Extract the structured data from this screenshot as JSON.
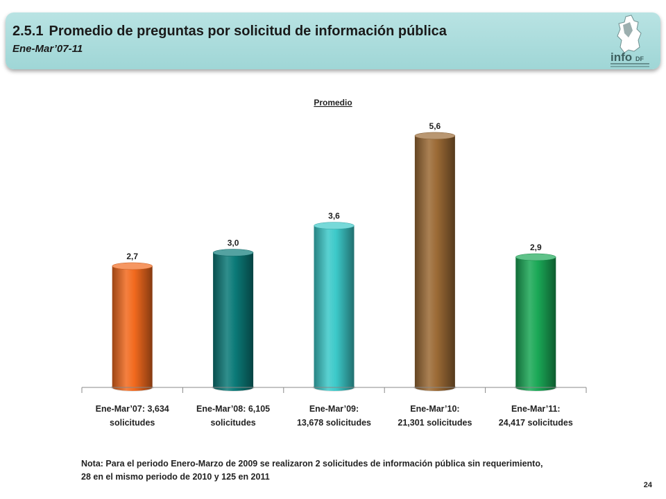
{
  "header": {
    "section_number": "2.5.1",
    "title": "Promedio de preguntas por solicitud de información pública",
    "subtitle": "Ene-Mar’07-11",
    "logo_text": "info",
    "logo_suffix": "DF"
  },
  "chart_data": {
    "type": "bar",
    "title": "Promedio",
    "categories": [
      [
        "Ene-Mar’07: 3,634",
        "solicitudes"
      ],
      [
        "Ene-Mar’08: 6,105",
        "solicitudes"
      ],
      [
        "Ene-Mar’09:",
        "13,678 solicitudes"
      ],
      [
        "Ene-Mar’10:",
        "21,301 solicitudes"
      ],
      [
        "Ene-Mar’11:",
        "24,417 solicitudes"
      ]
    ],
    "values": [
      2.7,
      3.0,
      3.6,
      5.6,
      2.9
    ],
    "value_labels": [
      "2,7",
      "3,0",
      "3,6",
      "5,6",
      "2,9"
    ],
    "colors": [
      "#f26a1e",
      "#0b7a78",
      "#3cc9c9",
      "#9b6a35",
      "#1aa856"
    ],
    "ylim": [
      0,
      6.0
    ],
    "grid": false,
    "legend": "none"
  },
  "note": {
    "line1": "Nota: Para el periodo Enero-Marzo de 2009 se realizaron 2 solicitudes de información pública sin requerimiento,",
    "line2": "28 en el mismo periodo de 2010 y 125  en 2011"
  },
  "page_number": "24"
}
